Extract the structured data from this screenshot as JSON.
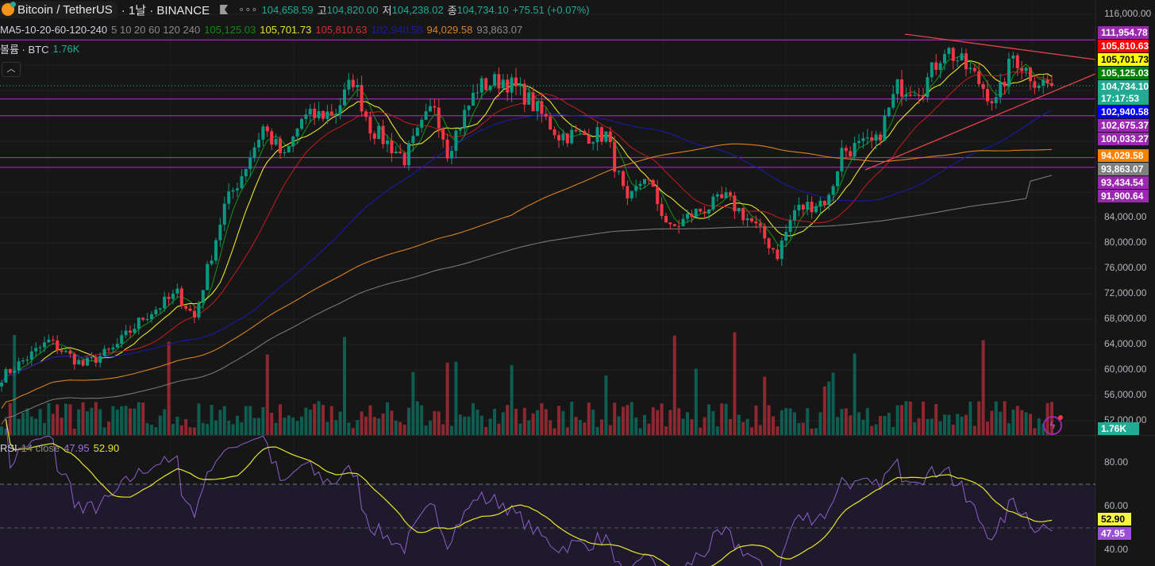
{
  "header": {
    "symbol": "Bitcoin / TetherUS",
    "interval_exchange": "· 1날 · BINANCE",
    "more": "∘∘∘",
    "open": "104,658.59",
    "high_label": "고",
    "high": "104,820.00",
    "low_label": "저",
    "low": "104,238.02",
    "close_label": "종",
    "close": "104,734.10",
    "change": "+75.51 (+0.07%)"
  },
  "ma_legend": {
    "name": "MA5-10-20-60-120-240",
    "params": "5 10 20 60 120 240",
    "values": [
      "105,125.03",
      "105,701.73",
      "105,810.63",
      "102,940.58",
      "94,029.58",
      "93,863.07"
    ]
  },
  "volume_legend": {
    "name": "볼륨 · BTC",
    "value": "1.76K"
  },
  "collapse_icon": "chevron-up",
  "rsi_legend": {
    "name": "RSI",
    "params": "14 close",
    "rsi": "47.95",
    "rsi_ma": "52.90"
  },
  "price_axis": {
    "ticks": [
      "116,000.00",
      "84,000.00",
      "80,000.00",
      "76,000.00",
      "72,000.00",
      "68,000.00",
      "64,000.00",
      "60,000.00",
      "56,000.00",
      "52,000.00"
    ],
    "tags": [
      {
        "text": "111,954.78",
        "color": "#9c27b0"
      },
      {
        "text": "105,810.63",
        "color": "#ff0000"
      },
      {
        "text": "105,701.73",
        "color": "#ffff00",
        "dark": true
      },
      {
        "text": "105,125.03",
        "color": "#008000"
      },
      {
        "text": "104,734.10",
        "color": "#22ab94"
      },
      {
        "text": "17:17:53",
        "color": "#22ab94"
      },
      {
        "text": "102,940.58",
        "color": "#0000ff"
      },
      {
        "text": "102,675.37",
        "color": "#9c27b0"
      },
      {
        "text": "100,033.27",
        "color": "#9c27b0"
      },
      {
        "text": "94,029.58",
        "color": "#ff8000"
      },
      {
        "text": "93,863.07",
        "color": "#808080"
      },
      {
        "text": "93,434.54",
        "color": "#9c27b0"
      },
      {
        "text": "91,900.64",
        "color": "#9c27b0"
      }
    ],
    "volume_tag": "1.76K"
  },
  "rsi_axis": {
    "ticks": [
      "80.00",
      "60.00",
      "40.00"
    ],
    "tags": [
      {
        "text": "52.90",
        "color": "#f5f542"
      },
      {
        "text": "47.95",
        "color": "#9c4fd6"
      }
    ]
  },
  "colors": {
    "up": "#089981",
    "down": "#f23645",
    "ma5": "#138a13",
    "ma10": "#e6e62a",
    "ma20": "#b71c1c",
    "ma60": "#1a1aa8",
    "ma120": "#d9801f",
    "ma240": "#777777",
    "level": "#9c27b0",
    "trend": "#e0444a",
    "rsi": "#8e5fd0",
    "rsi_ma": "#e6e62a"
  },
  "chart_data": {
    "type": "candlestick",
    "title": "Bitcoin / TetherUS 1D BINANCE",
    "candle_count": 246,
    "close_keypoints": [
      [
        0,
        58875
      ],
      [
        11,
        64500
      ],
      [
        19,
        60750
      ],
      [
        26,
        63250
      ],
      [
        33,
        68250
      ],
      [
        41,
        72000
      ],
      [
        45,
        68250
      ],
      [
        48,
        75750
      ],
      [
        52,
        85750
      ],
      [
        56,
        90750
      ],
      [
        61,
        98250
      ],
      [
        66,
        93250
      ],
      [
        70,
        99500
      ],
      [
        78,
        100750
      ],
      [
        82,
        105750
      ],
      [
        86,
        98250
      ],
      [
        94,
        93250
      ],
      [
        101,
        102000
      ],
      [
        104,
        94500
      ],
      [
        111,
        104500
      ],
      [
        117,
        105750
      ],
      [
        122,
        103250
      ],
      [
        130,
        97000
      ],
      [
        141,
        97000
      ],
      [
        146,
        85750
      ],
      [
        150,
        90750
      ],
      [
        156,
        82000
      ],
      [
        161,
        84500
      ],
      [
        169,
        87000
      ],
      [
        175,
        83250
      ],
      [
        181,
        78250
      ],
      [
        185,
        85125
      ],
      [
        193,
        87000
      ],
      [
        196,
        94500
      ],
      [
        204,
        95750
      ],
      [
        209,
        104500
      ],
      [
        215,
        104500
      ],
      [
        220,
        110750
      ],
      [
        226,
        107000
      ],
      [
        232,
        102000
      ],
      [
        236,
        109500
      ],
      [
        241,
        105750
      ],
      [
        245,
        104734.1
      ]
    ],
    "horizontal_levels": [
      111954.78,
      102675.37,
      100033.27,
      93434.54,
      91900.64
    ],
    "ma_periods": [
      5,
      10,
      20,
      60,
      120,
      240
    ],
    "ylim": [
      50000,
      118000
    ],
    "rsi": {
      "period": 14,
      "ma_period": 14,
      "last": 47.95,
      "ma_last": 52.9,
      "levels": [
        70,
        50
      ],
      "ylim": [
        34,
        90
      ]
    }
  }
}
